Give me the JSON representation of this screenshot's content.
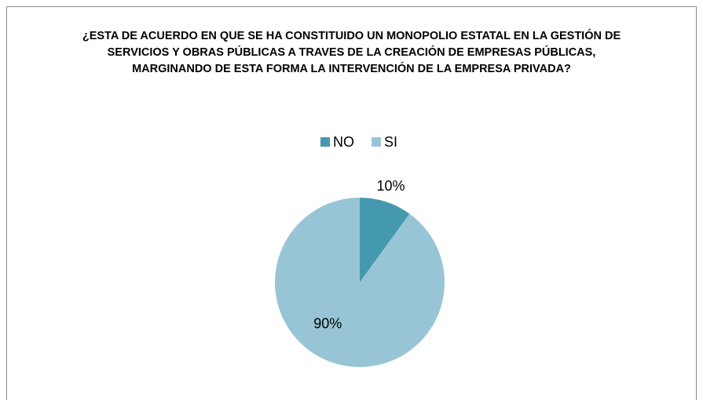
{
  "chart_data": {
    "type": "pie",
    "title": "¿ESTA DE ACUERDO EN QUE SE HA CONSTITUIDO UN MONOPOLIO ESTATAL EN LA GESTIÓN DE SERVICIOS Y OBRAS PÚBLICAS A TRAVES DE LA CREACIÓN DE EMPRESAS PÚBLICAS, MARGINANDO DE ESTA FORMA LA INTERVENCIÓN DE LA EMPRESA PRIVADA?",
    "categories": [
      "NO",
      "SI"
    ],
    "values": [
      10,
      90
    ],
    "value_labels": [
      "10%",
      "90%"
    ],
    "colors": [
      "#4599ae",
      "#98c5d6"
    ],
    "legend": "top"
  }
}
